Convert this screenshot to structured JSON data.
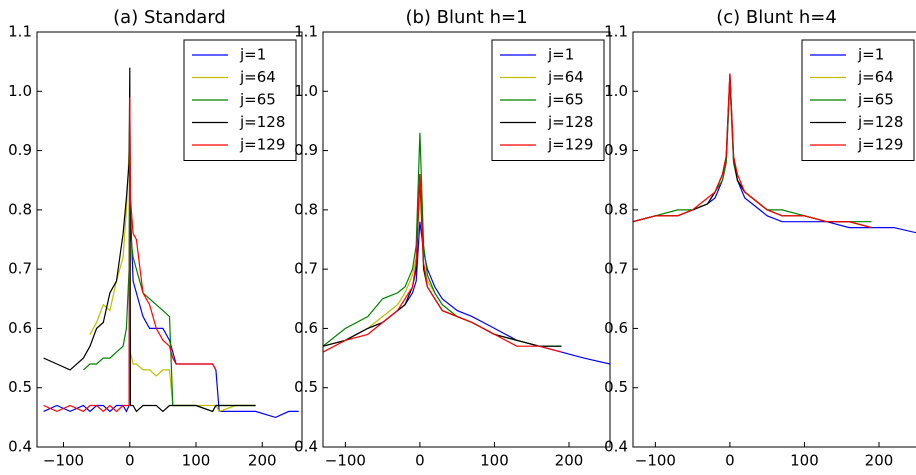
{
  "chart_data": [
    {
      "type": "line",
      "title": "(a) Standard",
      "x": [
        -130,
        -110,
        -90,
        -70,
        -60,
        -50,
        -40,
        -30,
        -20,
        -10,
        -5,
        -1,
        0,
        1,
        5,
        10,
        20,
        30,
        40,
        50,
        60,
        65,
        70,
        100,
        125,
        130,
        135,
        160,
        190,
        220,
        240,
        255
      ],
      "series": [
        {
          "name": "j=1",
          "color": "#0000ff",
          "values": [
            0.46,
            0.47,
            0.46,
            0.47,
            0.46,
            0.47,
            0.47,
            0.46,
            0.47,
            0.47,
            0.46,
            0.47,
            0.99,
            0.8,
            0.68,
            0.66,
            0.62,
            0.6,
            0.6,
            0.6,
            0.58,
            0.56,
            0.54,
            0.54,
            0.54,
            0.53,
            0.46,
            0.46,
            0.46,
            0.45,
            0.46,
            0.46
          ]
        },
        {
          "name": "j=64",
          "color": "#bfbf00",
          "values": [
            null,
            null,
            null,
            null,
            0.59,
            0.61,
            0.64,
            0.63,
            0.68,
            0.72,
            0.8,
            0.9,
            0.97,
            0.56,
            0.54,
            0.54,
            0.53,
            0.53,
            0.52,
            0.53,
            0.53,
            0.47,
            0.47,
            0.47,
            0.47,
            0.47,
            0.46,
            0.47,
            0.47,
            null,
            null,
            null
          ]
        },
        {
          "name": "j=65",
          "color": "#008000",
          "values": [
            null,
            null,
            null,
            0.53,
            0.54,
            0.54,
            0.55,
            0.55,
            0.56,
            0.57,
            0.6,
            0.7,
            0.97,
            0.76,
            0.72,
            0.7,
            0.66,
            0.65,
            0.64,
            0.63,
            0.62,
            0.47,
            0.47,
            0.47,
            0.46,
            0.47,
            0.47,
            0.47,
            0.47,
            null,
            null,
            null
          ]
        },
        {
          "name": "j=128",
          "color": "#000000",
          "values": [
            0.55,
            0.54,
            0.53,
            0.55,
            0.57,
            0.6,
            0.61,
            0.66,
            0.68,
            0.76,
            0.82,
            0.88,
            1.04,
            0.47,
            0.47,
            0.46,
            0.47,
            0.47,
            0.47,
            0.46,
            0.47,
            0.47,
            0.47,
            0.47,
            0.46,
            0.47,
            0.47,
            0.47,
            0.47,
            null,
            null,
            null
          ]
        },
        {
          "name": "j=129",
          "color": "#ff0000",
          "values": [
            0.47,
            0.46,
            0.47,
            0.46,
            0.47,
            0.47,
            0.46,
            0.47,
            0.46,
            0.47,
            0.47,
            0.47,
            0.99,
            0.82,
            0.76,
            0.75,
            0.66,
            0.64,
            0.6,
            0.58,
            0.57,
            0.55,
            0.54,
            0.54,
            0.54,
            0.53,
            null,
            null,
            null,
            null,
            null,
            null
          ]
        }
      ],
      "xlim": [
        -140,
        260
      ],
      "ylim": [
        0.4,
        1.1
      ],
      "xticks": [
        {
          "value": -100,
          "label": "−100"
        },
        0,
        100,
        200
      ],
      "yticks": [
        0.4,
        0.5,
        0.6,
        0.7,
        0.8,
        0.9,
        {
          "value": 1,
          "label": "1.0"
        },
        1.1
      ],
      "legend": "upper right"
    },
    {
      "type": "line",
      "title": "(b) Blunt h=1",
      "x": [
        -130,
        -100,
        -70,
        -50,
        -30,
        -20,
        -10,
        -5,
        0,
        5,
        10,
        20,
        30,
        50,
        70,
        100,
        130,
        160,
        190,
        220,
        255
      ],
      "series": [
        {
          "name": "j=1",
          "color": "#0000ff",
          "values": [
            0.57,
            0.58,
            0.6,
            0.61,
            0.63,
            0.64,
            0.66,
            0.68,
            0.78,
            0.73,
            0.7,
            0.67,
            0.65,
            0.63,
            0.62,
            0.6,
            0.58,
            0.57,
            0.56,
            0.55,
            0.54
          ]
        },
        {
          "name": "j=64",
          "color": "#bfbf00",
          "values": [
            0.57,
            0.58,
            0.6,
            0.62,
            0.64,
            0.66,
            0.69,
            0.72,
            0.84,
            0.71,
            0.68,
            0.66,
            0.64,
            0.62,
            0.61,
            0.59,
            0.58,
            0.57,
            0.57,
            null,
            null
          ]
        },
        {
          "name": "j=65",
          "color": "#008000",
          "values": [
            0.57,
            0.6,
            0.62,
            0.65,
            0.66,
            0.67,
            0.7,
            0.74,
            0.93,
            0.74,
            0.69,
            0.66,
            0.64,
            0.62,
            0.61,
            0.59,
            0.58,
            0.57,
            0.57,
            null,
            null
          ]
        },
        {
          "name": "j=128",
          "color": "#000000",
          "values": [
            0.57,
            0.58,
            0.6,
            0.61,
            0.63,
            0.64,
            0.67,
            0.7,
            0.86,
            0.7,
            0.67,
            0.65,
            0.63,
            0.62,
            0.61,
            0.59,
            0.58,
            0.57,
            0.57,
            null,
            null
          ]
        },
        {
          "name": "j=129",
          "color": "#ff0000",
          "values": [
            0.56,
            0.58,
            0.59,
            0.61,
            0.63,
            0.65,
            0.67,
            0.71,
            0.86,
            0.71,
            0.67,
            0.65,
            0.63,
            0.62,
            0.61,
            0.59,
            0.57,
            0.57,
            0.56,
            null,
            null
          ]
        }
      ],
      "xlim": [
        -130,
        255
      ],
      "ylim": [
        0.4,
        1.1
      ],
      "xticks": [
        {
          "value": -100,
          "label": "−100"
        },
        0,
        100,
        200
      ],
      "yticks": [
        0.4,
        0.5,
        0.6,
        0.7,
        0.8,
        0.9,
        {
          "value": 1,
          "label": "1.0"
        },
        1.1
      ],
      "legend": "upper right"
    },
    {
      "type": "line",
      "title": "(c) Blunt h=4",
      "x": [
        -130,
        -100,
        -70,
        -50,
        -30,
        -20,
        -10,
        -5,
        0,
        5,
        10,
        20,
        30,
        50,
        70,
        100,
        130,
        160,
        190,
        220,
        255
      ],
      "series": [
        {
          "name": "j=1",
          "color": "#0000ff",
          "values": [
            0.78,
            0.79,
            0.79,
            0.8,
            0.81,
            0.82,
            0.85,
            0.88,
            1.02,
            0.88,
            0.85,
            0.82,
            0.81,
            0.79,
            0.78,
            0.78,
            0.78,
            0.77,
            0.77,
            0.77,
            0.76
          ]
        },
        {
          "name": "j=64",
          "color": "#bfbf00",
          "values": [
            0.78,
            0.79,
            0.79,
            0.8,
            0.81,
            0.83,
            0.85,
            0.88,
            1.02,
            0.88,
            0.85,
            0.83,
            0.82,
            0.8,
            0.79,
            0.79,
            0.78,
            0.78,
            0.77,
            null,
            null
          ]
        },
        {
          "name": "j=65",
          "color": "#008000",
          "values": [
            0.78,
            0.79,
            0.8,
            0.8,
            0.81,
            0.83,
            0.85,
            0.88,
            1.02,
            0.88,
            0.85,
            0.83,
            0.82,
            0.8,
            0.8,
            0.79,
            0.78,
            0.78,
            0.78,
            null,
            null
          ]
        },
        {
          "name": "j=128",
          "color": "#000000",
          "values": [
            0.78,
            0.79,
            0.79,
            0.8,
            0.81,
            0.83,
            0.86,
            0.89,
            1.03,
            0.89,
            0.85,
            0.83,
            0.82,
            0.8,
            0.79,
            0.79,
            0.78,
            0.78,
            0.77,
            null,
            null
          ]
        },
        {
          "name": "j=129",
          "color": "#ff0000",
          "values": [
            0.78,
            0.79,
            0.79,
            0.8,
            0.82,
            0.83,
            0.86,
            0.89,
            1.03,
            0.89,
            0.86,
            0.83,
            0.82,
            0.8,
            0.79,
            0.79,
            0.78,
            0.78,
            0.77,
            null,
            null
          ]
        }
      ],
      "xlim": [
        -130,
        255
      ],
      "ylim": [
        0.4,
        1.1
      ],
      "xticks": [
        {
          "value": -100,
          "label": "−100"
        },
        0,
        100,
        200
      ],
      "yticks": [
        0.4,
        0.5,
        0.6,
        0.7,
        0.8,
        0.9,
        {
          "value": 1,
          "label": "1.0"
        },
        1.1
      ],
      "legend": "upper right"
    }
  ]
}
